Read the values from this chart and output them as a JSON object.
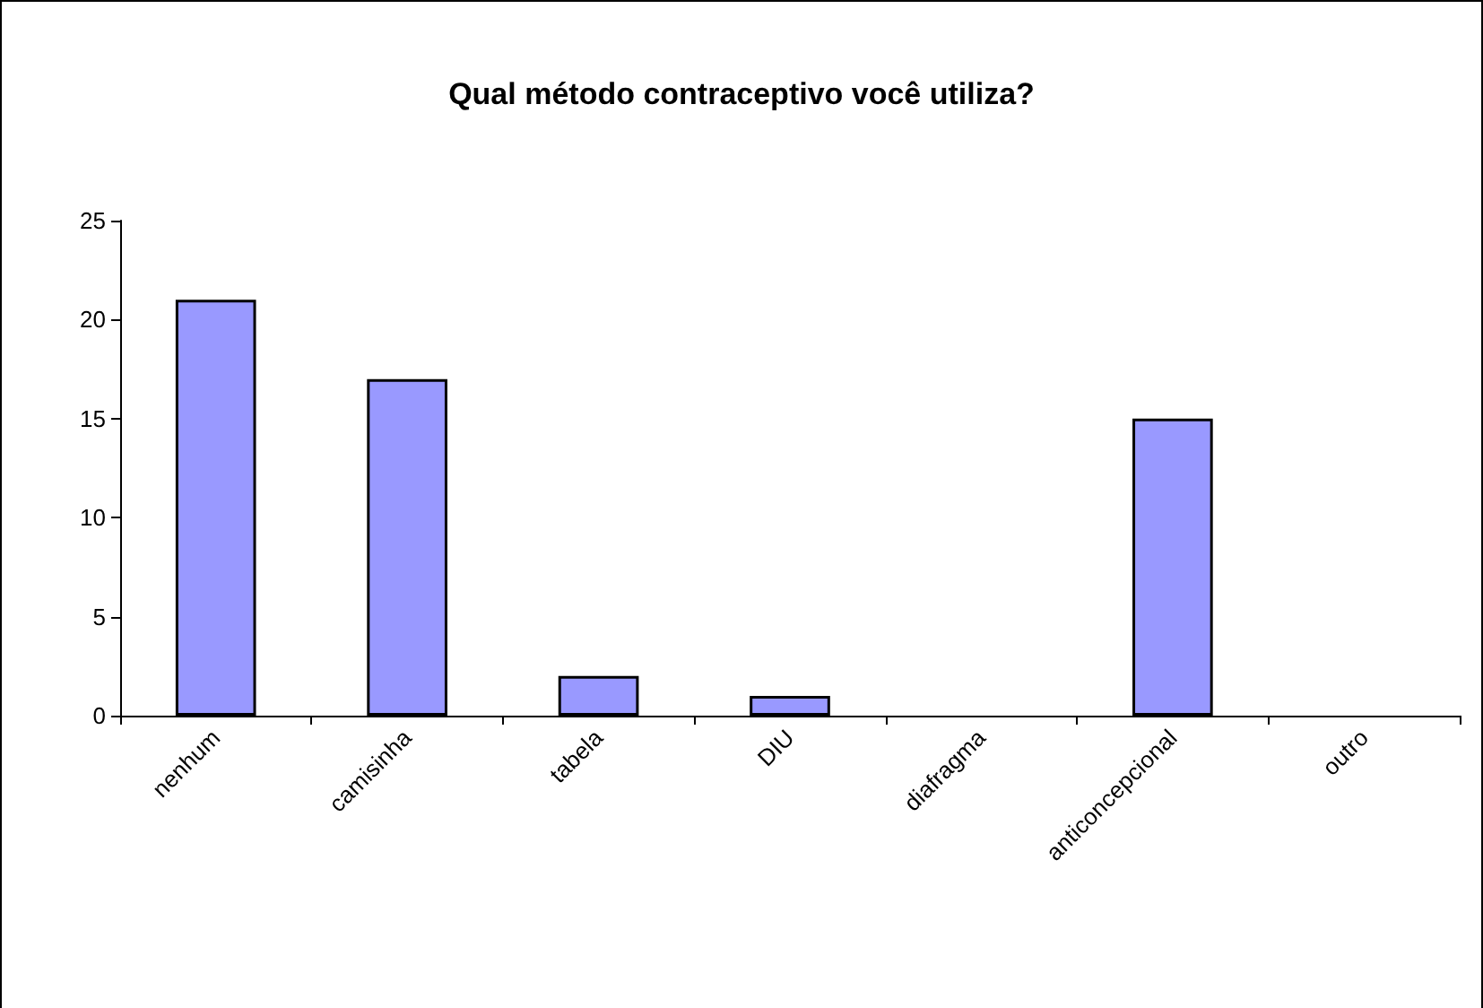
{
  "chart_data": {
    "type": "bar",
    "title": "Qual método contraceptivo você utiliza?",
    "categories": [
      "nenhum",
      "camisinha",
      "tabela",
      "DIU",
      "diafragma",
      "anticoncepcional",
      "outro"
    ],
    "values": [
      21,
      17,
      2,
      1,
      0,
      15,
      0
    ],
    "color": "#9999ff",
    "ylim": [
      0,
      25
    ],
    "yticks": [
      0,
      5,
      10,
      15,
      20,
      25
    ],
    "grid": false
  }
}
